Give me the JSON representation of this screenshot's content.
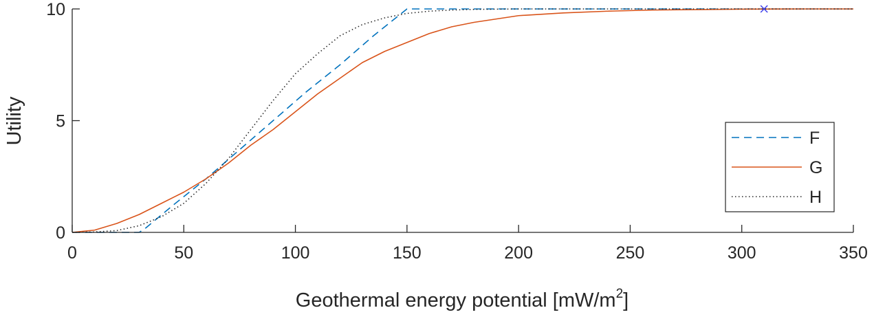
{
  "chart_data": {
    "type": "line",
    "title": "",
    "xlabel": "Geothermal energy potential [mW/m",
    "xlabel_superscript": "2",
    "xlabel_suffix": "]",
    "ylabel": "Utility",
    "xlim": [
      0,
      350
    ],
    "ylim": [
      0,
      10
    ],
    "xticks": [
      0,
      50,
      100,
      150,
      200,
      250,
      300,
      350
    ],
    "yticks": [
      0,
      5,
      10
    ],
    "xtick_labels": [
      "0",
      "50",
      "100",
      "150",
      "200",
      "250",
      "300",
      "350"
    ],
    "ytick_labels": [
      "0",
      "5",
      "10"
    ],
    "grid": false,
    "legend_position": "right",
    "series": [
      {
        "name": "F",
        "color": "#0072BD",
        "style": "dashed",
        "x": [
          0,
          30,
          33,
          45,
          60,
          75,
          90,
          105,
          120,
          135,
          150,
          200,
          250,
          300,
          350
        ],
        "y": [
          0,
          0,
          0.2,
          1.2,
          2.4,
          3.7,
          5.0,
          6.3,
          7.5,
          8.8,
          10,
          10,
          10,
          10,
          10
        ]
      },
      {
        "name": "G",
        "color": "#D95319",
        "style": "solid",
        "x": [
          0,
          10,
          20,
          30,
          40,
          50,
          60,
          70,
          80,
          90,
          100,
          110,
          120,
          130,
          140,
          150,
          160,
          170,
          180,
          190,
          200,
          220,
          240,
          260,
          280,
          300,
          330,
          350
        ],
        "y": [
          0,
          0.1,
          0.4,
          0.8,
          1.3,
          1.8,
          2.4,
          3.1,
          3.9,
          4.6,
          5.4,
          6.2,
          6.9,
          7.6,
          8.1,
          8.5,
          8.9,
          9.2,
          9.4,
          9.55,
          9.7,
          9.82,
          9.9,
          9.95,
          9.97,
          9.99,
          10,
          10
        ]
      },
      {
        "name": "H",
        "color": "#262626",
        "style": "dotted",
        "x": [
          0,
          10,
          20,
          30,
          40,
          50,
          60,
          70,
          80,
          90,
          100,
          110,
          120,
          130,
          140,
          150,
          160,
          170,
          180,
          200,
          250,
          300,
          350
        ],
        "y": [
          0,
          0.02,
          0.08,
          0.3,
          0.7,
          1.3,
          2.2,
          3.3,
          4.6,
          5.9,
          7.1,
          8.0,
          8.8,
          9.3,
          9.6,
          9.8,
          9.9,
          9.95,
          9.98,
          10,
          10,
          10,
          10
        ]
      }
    ],
    "markers": [
      {
        "x": 310,
        "y": 10,
        "symbol": "x",
        "color": "#3B3BE8"
      }
    ]
  }
}
